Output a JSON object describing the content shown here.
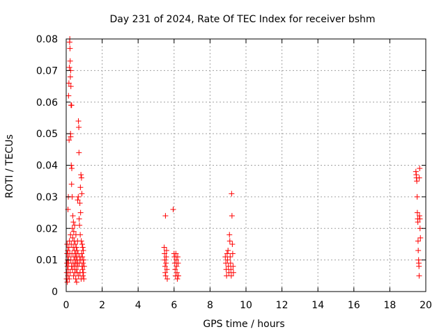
{
  "chart_data": {
    "type": "scatter",
    "title": "Day 231 of 2024, Rate Of TEC Index for receiver bshm",
    "xlabel": "GPS time / hours",
    "ylabel": "ROTI / TECUs",
    "xlim": [
      0,
      20
    ],
    "ylim": [
      0,
      0.08
    ],
    "xticks": [
      0,
      2,
      4,
      6,
      8,
      10,
      12,
      14,
      16,
      18,
      20
    ],
    "xtick_labels": [
      "0",
      "2",
      "4",
      "6",
      "8",
      "10",
      "12",
      "14",
      "16",
      "18",
      "20"
    ],
    "yticks": [
      0,
      0.01,
      0.02,
      0.03,
      0.04,
      0.05,
      0.06,
      0.07,
      0.08
    ],
    "ytick_labels": [
      "0",
      "0.01",
      "0.02",
      "0.03",
      "0.04",
      "0.05",
      "0.06",
      "0.07",
      "0.08"
    ],
    "grid": true,
    "marker": "plus",
    "color": "#ff0000",
    "series": [
      {
        "points": [
          [
            0.02,
            0.004
          ],
          [
            0.03,
            0.006
          ],
          [
            0.04,
            0.009
          ],
          [
            0.05,
            0.012
          ],
          [
            0.05,
            0.015
          ],
          [
            0.06,
            0.003
          ],
          [
            0.07,
            0.008
          ],
          [
            0.08,
            0.01
          ],
          [
            0.09,
            0.013
          ],
          [
            0.1,
            0.005
          ],
          [
            0.1,
            0.026
          ],
          [
            0.11,
            0.007
          ],
          [
            0.12,
            0.011
          ],
          [
            0.12,
            0.03
          ],
          [
            0.13,
            0.062
          ],
          [
            0.14,
            0.009
          ],
          [
            0.15,
            0.014
          ],
          [
            0.15,
            0.066
          ],
          [
            0.16,
            0.048
          ],
          [
            0.17,
            0.004
          ],
          [
            0.18,
            0.016
          ],
          [
            0.18,
            0.071
          ],
          [
            0.19,
            0.079
          ],
          [
            0.2,
            0.08
          ],
          [
            0.2,
            0.012
          ],
          [
            0.21,
            0.077
          ],
          [
            0.22,
            0.006
          ],
          [
            0.22,
            0.073
          ],
          [
            0.23,
            0.068
          ],
          [
            0.24,
            0.018
          ],
          [
            0.24,
            0.05
          ],
          [
            0.25,
            0.049
          ],
          [
            0.25,
            0.07
          ],
          [
            0.26,
            0.065
          ],
          [
            0.26,
            0.01
          ],
          [
            0.27,
            0.059
          ],
          [
            0.28,
            0.04
          ],
          [
            0.28,
            0.015
          ],
          [
            0.29,
            0.008
          ],
          [
            0.3,
            0.034
          ],
          [
            0.3,
            0.059
          ],
          [
            0.31,
            0.039
          ],
          [
            0.32,
            0.012
          ],
          [
            0.33,
            0.03
          ],
          [
            0.34,
            0.02
          ],
          [
            0.35,
            0.007
          ],
          [
            0.36,
            0.017
          ],
          [
            0.37,
            0.024
          ],
          [
            0.38,
            0.009
          ],
          [
            0.39,
            0.014
          ],
          [
            0.4,
            0.022
          ],
          [
            0.41,
            0.005
          ],
          [
            0.42,
            0.019
          ],
          [
            0.43,
            0.011
          ],
          [
            0.44,
            0.016
          ],
          [
            0.45,
            0.008
          ],
          [
            0.46,
            0.013
          ],
          [
            0.47,
            0.021
          ],
          [
            0.48,
            0.006
          ],
          [
            0.49,
            0.01
          ],
          [
            0.5,
            0.015
          ],
          [
            0.51,
            0.009
          ],
          [
            0.52,
            0.012
          ],
          [
            0.53,
            0.004
          ],
          [
            0.54,
            0.018
          ],
          [
            0.55,
            0.007
          ],
          [
            0.56,
            0.011
          ],
          [
            0.57,
            0.014
          ],
          [
            0.58,
            0.003
          ],
          [
            0.59,
            0.009
          ],
          [
            0.6,
            0.013
          ],
          [
            0.61,
            0.006
          ],
          [
            0.62,
            0.01
          ],
          [
            0.63,
            0.016
          ],
          [
            0.64,
            0.029
          ],
          [
            0.65,
            0.008
          ],
          [
            0.66,
            0.012
          ],
          [
            0.67,
            0.03
          ],
          [
            0.68,
            0.054
          ],
          [
            0.69,
            0.005
          ],
          [
            0.7,
            0.052
          ],
          [
            0.71,
            0.044
          ],
          [
            0.72,
            0.023
          ],
          [
            0.73,
            0.009
          ],
          [
            0.74,
            0.021
          ],
          [
            0.75,
            0.011
          ],
          [
            0.76,
            0.028
          ],
          [
            0.77,
            0.006
          ],
          [
            0.78,
            0.018
          ],
          [
            0.79,
            0.033
          ],
          [
            0.8,
            0.025
          ],
          [
            0.81,
            0.01
          ],
          [
            0.82,
            0.037
          ],
          [
            0.83,
            0.004
          ],
          [
            0.84,
            0.016
          ],
          [
            0.85,
            0.036
          ],
          [
            0.86,
            0.012
          ],
          [
            0.87,
            0.031
          ],
          [
            0.88,
            0.008
          ],
          [
            0.89,
            0.015
          ],
          [
            0.9,
            0.011
          ],
          [
            0.91,
            0.007
          ],
          [
            0.92,
            0.014
          ],
          [
            0.93,
            0.005
          ],
          [
            0.94,
            0.009
          ],
          [
            0.95,
            0.013
          ],
          [
            0.96,
            0.006
          ],
          [
            0.97,
            0.01
          ],
          [
            0.98,
            0.004
          ],
          [
            1.0,
            0.008
          ],
          [
            5.45,
            0.014
          ],
          [
            5.47,
            0.012
          ],
          [
            5.48,
            0.01
          ],
          [
            5.5,
            0.008
          ],
          [
            5.51,
            0.006
          ],
          [
            5.52,
            0.024
          ],
          [
            5.53,
            0.005
          ],
          [
            5.55,
            0.009
          ],
          [
            5.56,
            0.011
          ],
          [
            5.58,
            0.013
          ],
          [
            5.6,
            0.007
          ],
          [
            5.62,
            0.004
          ],
          [
            5.95,
            0.026
          ],
          [
            6.0,
            0.012
          ],
          [
            6.02,
            0.011
          ],
          [
            6.04,
            0.009
          ],
          [
            6.06,
            0.007
          ],
          [
            6.08,
            0.005
          ],
          [
            6.1,
            0.012
          ],
          [
            6.12,
            0.01
          ],
          [
            6.14,
            0.008
          ],
          [
            6.16,
            0.006
          ],
          [
            6.18,
            0.004
          ],
          [
            6.2,
            0.011
          ],
          [
            6.22,
            0.009
          ],
          [
            6.24,
            0.005
          ],
          [
            8.85,
            0.011
          ],
          [
            8.88,
            0.009
          ],
          [
            8.9,
            0.007
          ],
          [
            8.92,
            0.005
          ],
          [
            8.95,
            0.012
          ],
          [
            8.97,
            0.01
          ],
          [
            9.0,
            0.013
          ],
          [
            9.02,
            0.008
          ],
          [
            9.05,
            0.006
          ],
          [
            9.08,
            0.018
          ],
          [
            9.1,
            0.016
          ],
          [
            9.12,
            0.011
          ],
          [
            9.14,
            0.009
          ],
          [
            9.16,
            0.007
          ],
          [
            9.18,
            0.005
          ],
          [
            9.2,
            0.031
          ],
          [
            9.22,
            0.024
          ],
          [
            9.24,
            0.015
          ],
          [
            9.26,
            0.012
          ],
          [
            9.28,
            0.008
          ],
          [
            9.3,
            0.006
          ],
          [
            19.45,
            0.038
          ],
          [
            19.47,
            0.037
          ],
          [
            19.48,
            0.036
          ],
          [
            19.5,
            0.035
          ],
          [
            19.52,
            0.03
          ],
          [
            19.53,
            0.025
          ],
          [
            19.55,
            0.023
          ],
          [
            19.56,
            0.022
          ],
          [
            19.57,
            0.016
          ],
          [
            19.58,
            0.013
          ],
          [
            19.6,
            0.01
          ],
          [
            19.61,
            0.009
          ],
          [
            19.62,
            0.008
          ],
          [
            19.63,
            0.005
          ],
          [
            19.64,
            0.036
          ],
          [
            19.65,
            0.024
          ],
          [
            19.66,
            0.039
          ],
          [
            19.67,
            0.023
          ],
          [
            19.68,
            0.02
          ],
          [
            19.7,
            0.017
          ]
        ]
      }
    ]
  }
}
